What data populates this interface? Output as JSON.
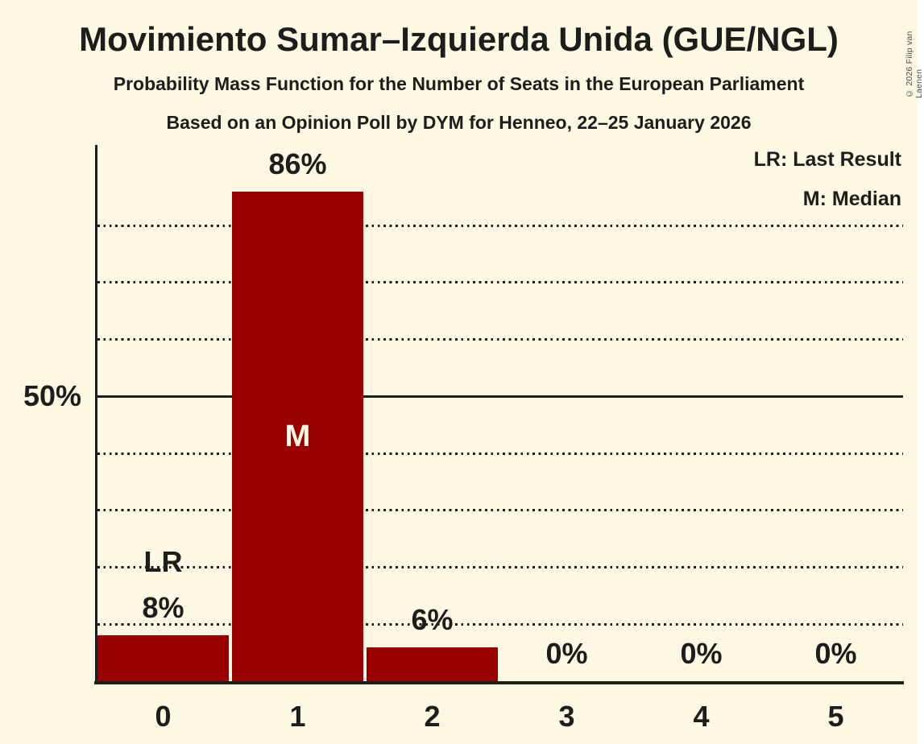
{
  "title": "Movimiento Sumar–Izquierda Unida (GUE/NGL)",
  "subtitle1": "Probability Mass Function for the Number of Seats in the European Parliament",
  "subtitle2": "Based on an Opinion Poll by DYM for Henneo, 22–25 January 2026",
  "copyright": "© 2026 Filip van Laenen",
  "legend": {
    "last_result": "LR: Last Result",
    "median": "M: Median"
  },
  "chart_data": {
    "type": "bar",
    "title": "Movimiento Sumar–Izquierda Unida (GUE/NGL)",
    "categories": [
      "0",
      "1",
      "2",
      "3",
      "4",
      "5"
    ],
    "values": [
      8,
      86,
      6,
      0,
      0,
      0
    ],
    "value_labels": [
      "8%",
      "86%",
      "6%",
      "0%",
      "0%",
      "0%"
    ],
    "xlabel": "",
    "ylabel": "",
    "ylim": [
      0,
      94
    ],
    "y_axis_tick": {
      "value": 50,
      "label": "50%"
    },
    "dotted_gridlines_pct": [
      10,
      20,
      30,
      40,
      60,
      70,
      80
    ],
    "solid_gridline_pct": 50,
    "grid": "horizontal dotted, solid at 50%",
    "legend_position": "top-right",
    "annotations": {
      "last_result": {
        "label": "LR",
        "category_index": 0
      },
      "median": {
        "label": "M",
        "category_index": 1
      }
    },
    "colors": {
      "bar": "#9B0000",
      "background": "#FCF8E3",
      "text": "#1D1D1B",
      "bar_inner_label": "#FCF8E3"
    }
  }
}
